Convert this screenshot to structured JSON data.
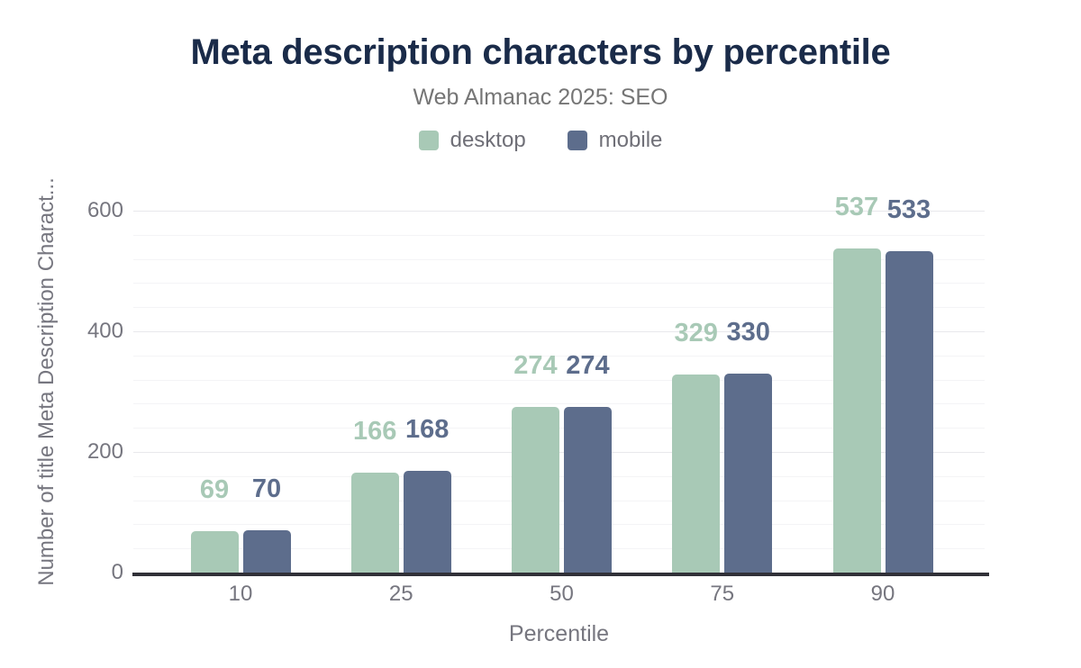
{
  "chart_data": {
    "type": "bar",
    "title": "Meta description characters by percentile",
    "subtitle": "Web Almanac 2025: SEO",
    "categories": [
      "10",
      "25",
      "50",
      "75",
      "90"
    ],
    "series": [
      {
        "name": "desktop",
        "color": "#a8c9b6",
        "values": [
          69,
          166,
          274,
          329,
          537
        ]
      },
      {
        "name": "mobile",
        "color": "#5d6d8c",
        "values": [
          70,
          168,
          274,
          330,
          533
        ]
      }
    ],
    "xlabel": "Percentile",
    "ylabel": "Number of title Meta Description Charact...",
    "ylim": [
      0,
      600
    ],
    "yticks": [
      0,
      200,
      400,
      600
    ],
    "minor_grid_step": 40,
    "grid": true,
    "legend_position": "top-center",
    "data_labels": true,
    "colors": {
      "title": "#1a2b49",
      "subtitle": "#757575",
      "axis_text": "#76767f",
      "axis_line": "#313138",
      "grid_major": "#e8e8ec",
      "grid_minor": "#f4f4f6"
    }
  }
}
